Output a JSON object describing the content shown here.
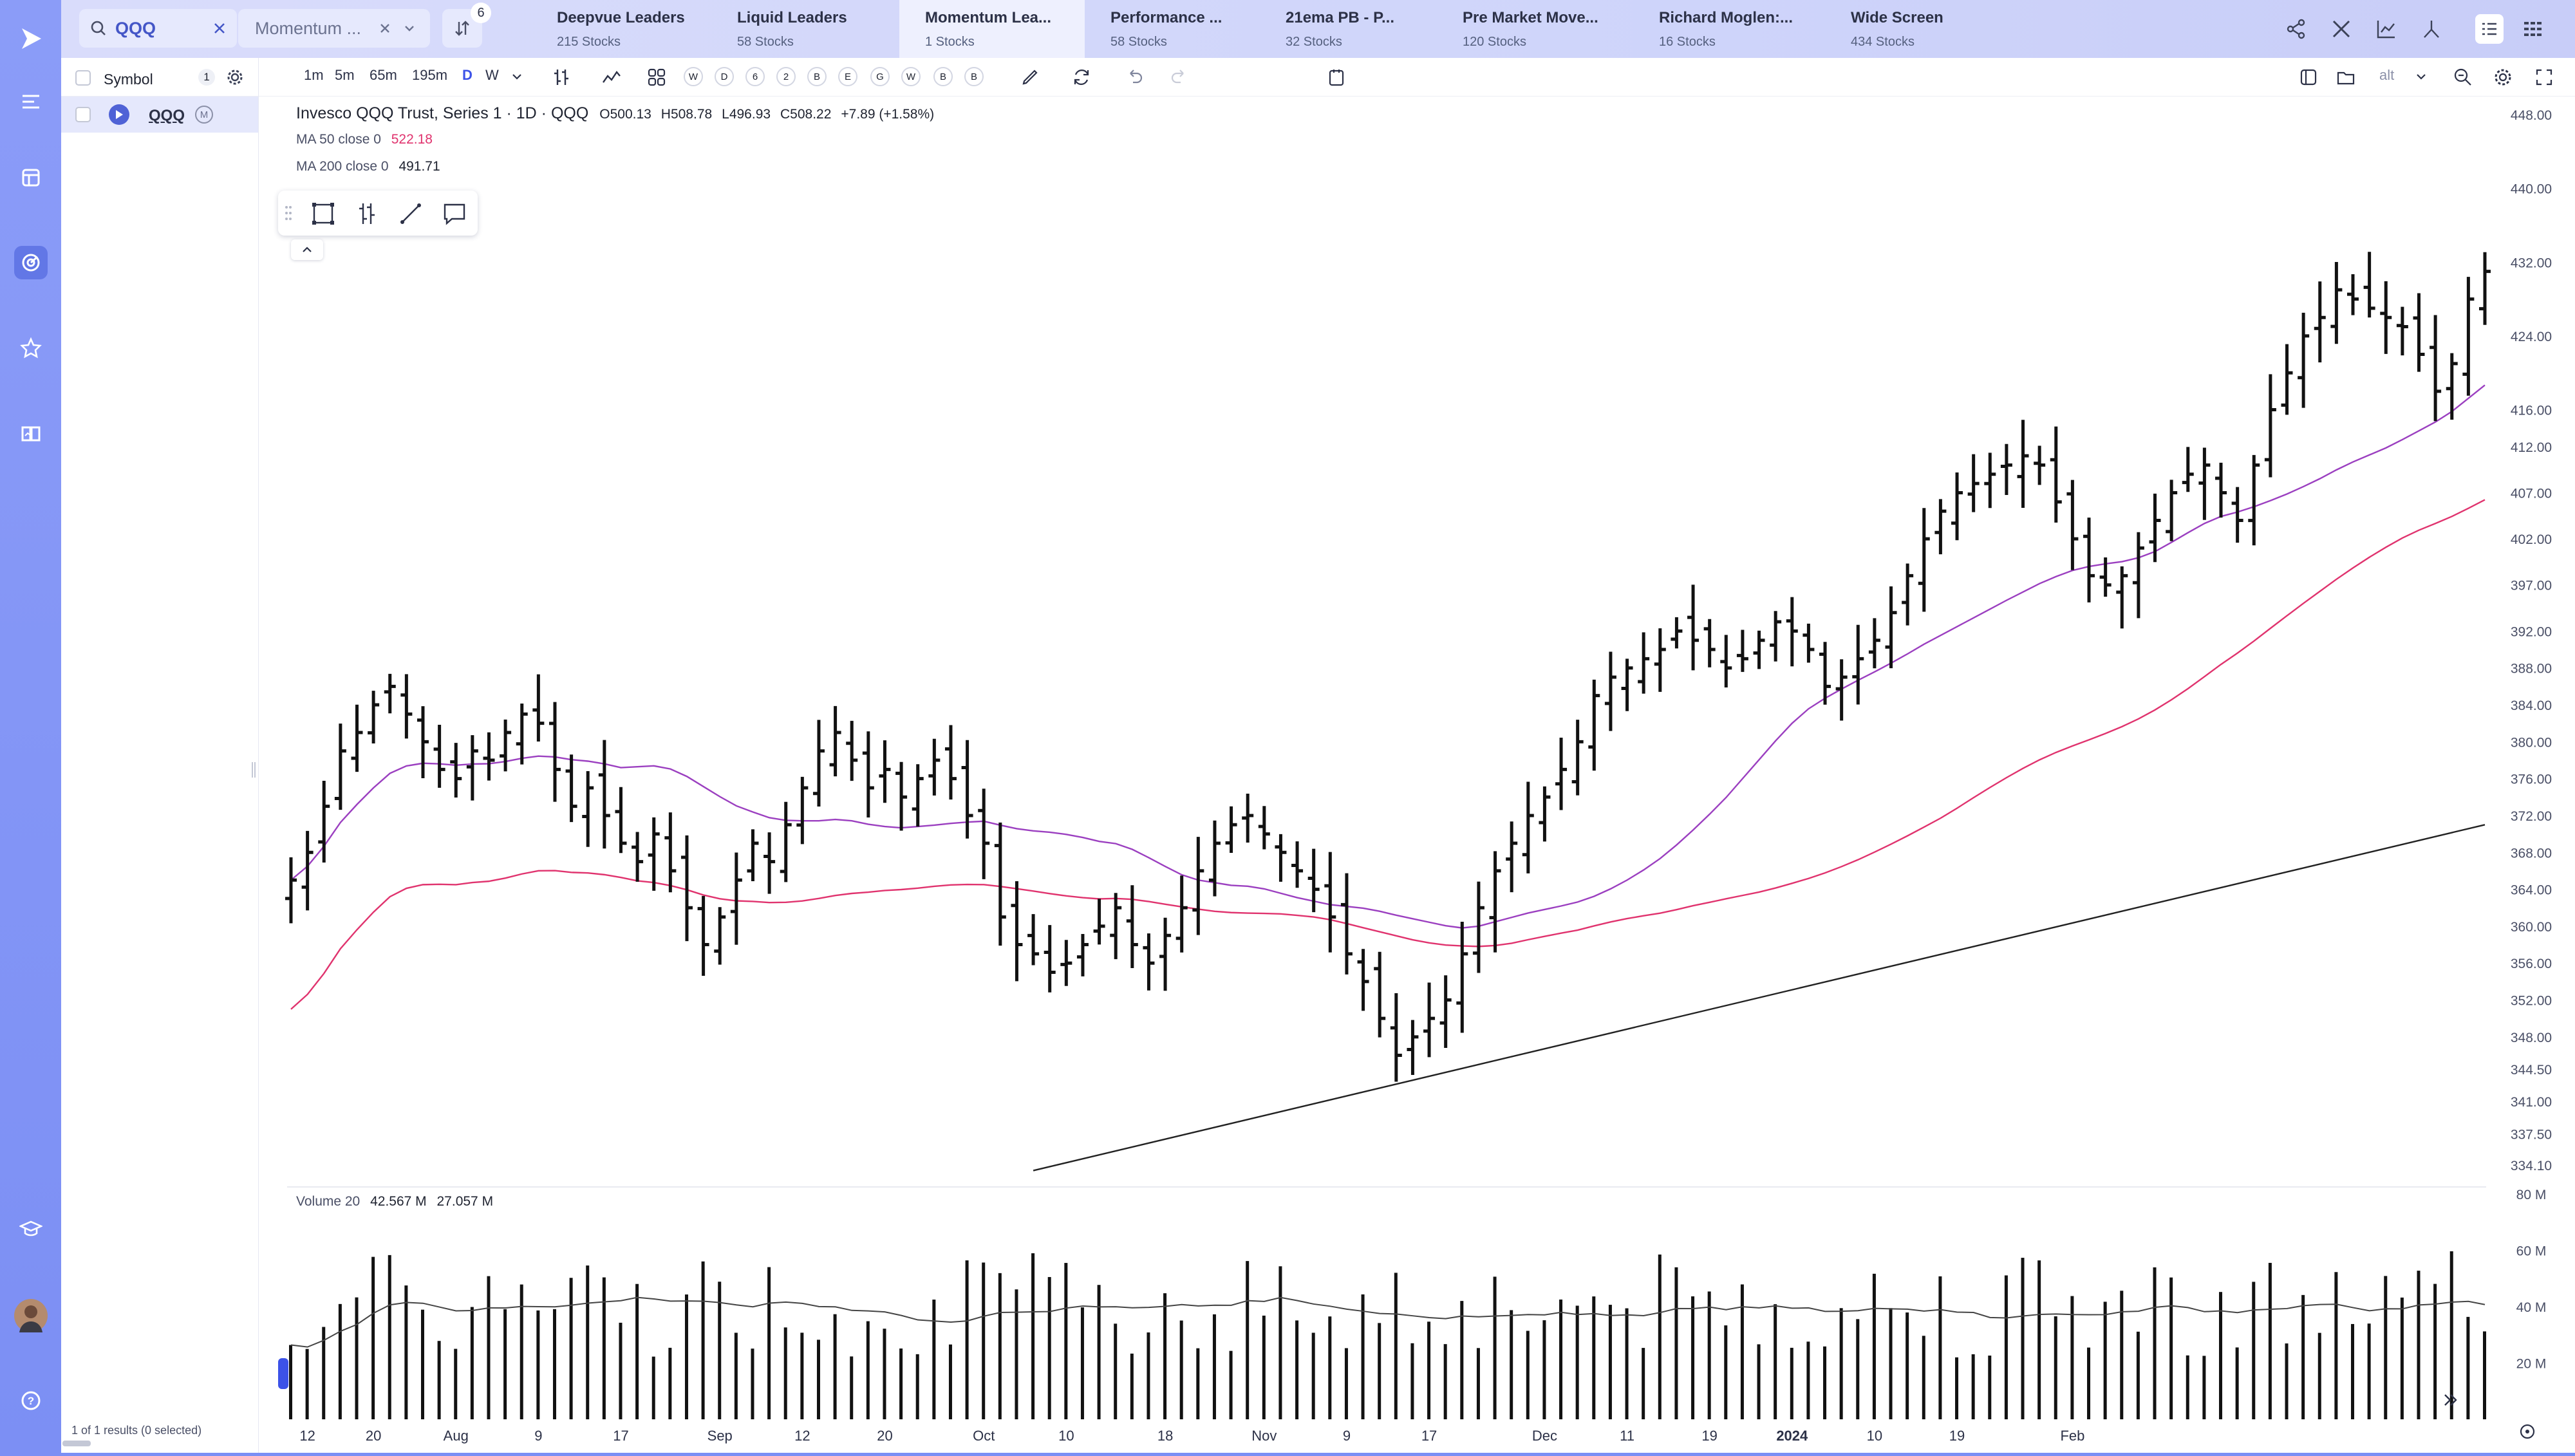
{
  "search": {
    "value": "QQQ"
  },
  "watchlist_dropdown": {
    "label": "Momentum ..."
  },
  "filter_badge": "6",
  "tabs": [
    {
      "name": "Deepvue Leaders",
      "sub": "215 Stocks"
    },
    {
      "name": "Liquid Leaders",
      "sub": "58 Stocks"
    },
    {
      "name": "Momentum Lea...",
      "sub": "1 Stocks"
    },
    {
      "name": "Performance ...",
      "sub": "58 Stocks"
    },
    {
      "name": "21ema PB - P...",
      "sub": "32 Stocks"
    },
    {
      "name": "Pre Market Move...",
      "sub": "120 Stocks"
    },
    {
      "name": "Richard Moglen:...",
      "sub": "16 Stocks"
    },
    {
      "name": "Wide Screen",
      "sub": "434 Stocks"
    }
  ],
  "left_panel": {
    "header": "Symbol",
    "count": "1",
    "row_symbol": "QQQ",
    "row_flag": "M",
    "footer": "1 of 1 results (0 selected)"
  },
  "toolbar": {
    "intervals": [
      "1m",
      "5m",
      "65m",
      "195m",
      "D",
      "W"
    ],
    "circles": [
      "W",
      "D",
      "6",
      "2",
      "B",
      "E",
      "G",
      "W",
      "B",
      "B"
    ],
    "alt": "alt"
  },
  "legend": {
    "title": "Invesco QQQ Trust, Series 1 · 1D · QQQ",
    "open": "O500.13",
    "high": "H508.78",
    "low": "L496.93",
    "close": "C508.22",
    "change": "+7.89 (+1.58%)",
    "ma50_label": "MA 50 close 0",
    "ma50_value": "522.18",
    "ma200_label": "MA 200 close 0",
    "ma200_value": "491.71",
    "volume_label": "Volume 20",
    "volume_value": "42.567 M",
    "volume_avg": "27.057 M"
  },
  "colors": {
    "ma_short": "#9b3fc0",
    "ma_mid": "#e0336e",
    "ma_long": "#222222",
    "accent": "#4456c7"
  },
  "chart_data": {
    "type": "ohlc",
    "price_ticks": [
      "448.00",
      "440.00",
      "432.00",
      "424.00",
      "416.00",
      "412.00",
      "407.00",
      "402.00",
      "397.00",
      "392.00",
      "388.00",
      "384.00",
      "380.00",
      "376.00",
      "372.00",
      "368.00",
      "364.00",
      "360.00",
      "356.00",
      "352.00",
      "348.00",
      "344.50",
      "341.00",
      "337.50",
      "334.10"
    ],
    "price_values": [
      448,
      440,
      432,
      424,
      416,
      412,
      407,
      402,
      397,
      392,
      388,
      384,
      380,
      376,
      372,
      368,
      364,
      360,
      356,
      352,
      348,
      344.5,
      341,
      337.5,
      334.1
    ],
    "volume_ticks": [
      "80 M",
      "60 M",
      "40 M",
      "20 M"
    ],
    "volume_values": [
      80,
      60,
      40,
      20
    ],
    "x_labels": [
      "12",
      "20",
      "Aug",
      "9",
      "17",
      "Sep",
      "12",
      "20",
      "Oct",
      "10",
      "18",
      "Nov",
      "9",
      "17",
      "Dec",
      "11",
      "19",
      "2024",
      "10",
      "19",
      "Feb"
    ],
    "x_label_index": [
      1,
      5,
      10,
      15,
      20,
      26,
      31,
      36,
      42,
      47,
      53,
      59,
      64,
      69,
      76,
      81,
      86,
      91,
      96,
      101,
      108
    ],
    "closes": [
      365,
      368,
      373,
      379,
      381,
      384,
      386,
      383,
      380,
      377,
      376,
      379,
      378,
      381,
      383,
      382,
      377,
      373,
      375,
      372,
      369,
      367,
      370,
      366,
      362,
      358,
      361,
      365,
      369,
      367,
      371,
      375,
      379,
      381,
      378,
      375,
      377,
      374,
      376,
      378,
      376,
      372,
      369,
      361,
      358,
      357,
      355,
      356,
      358,
      360,
      362,
      358,
      356,
      359,
      362,
      366,
      369,
      371,
      372,
      370,
      368,
      366,
      364,
      361,
      357,
      354,
      350,
      346,
      348,
      350,
      352,
      357,
      362,
      366,
      369,
      372,
      374,
      377,
      380,
      385,
      387,
      388,
      389,
      390,
      392,
      391,
      390,
      388,
      389,
      391,
      393,
      392,
      390,
      386,
      387,
      389,
      391,
      394,
      398,
      402,
      405,
      407,
      408,
      409,
      410,
      411,
      410,
      406,
      402,
      398,
      397,
      398,
      401,
      404,
      407,
      409,
      410,
      407,
      404,
      410,
      416,
      420,
      424,
      426,
      429,
      428,
      427,
      426,
      425,
      422,
      418,
      421,
      428,
      431
    ]
  }
}
